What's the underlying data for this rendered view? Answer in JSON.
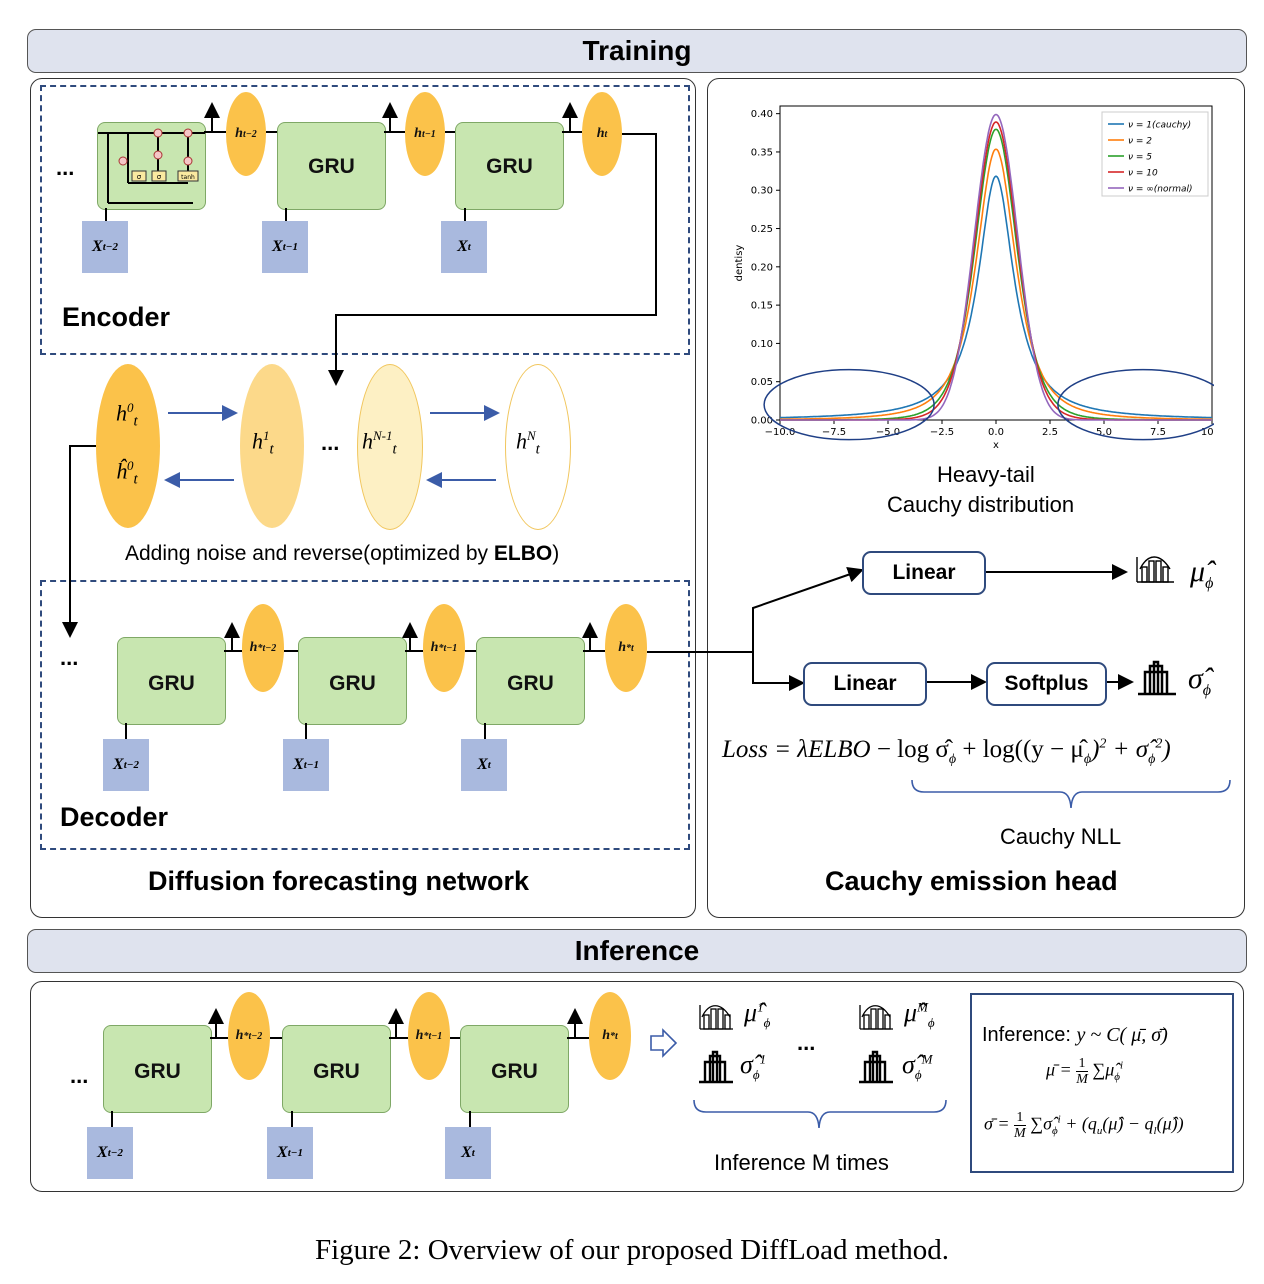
{
  "training_bar": {
    "title": "Training"
  },
  "inference_bar": {
    "title": "Inference"
  },
  "encoder": {
    "title": "Encoder",
    "ellipsis": "...",
    "gru_label": "GRU",
    "hidden": [
      {
        "base": "h",
        "sub": "t−2"
      },
      {
        "base": "h",
        "sub": "t−1"
      },
      {
        "base": "h",
        "sub": "t"
      }
    ],
    "inputs": [
      {
        "base": "X",
        "sub": "t−2"
      },
      {
        "base": "X",
        "sub": "t−1"
      },
      {
        "base": "X",
        "sub": "t"
      }
    ],
    "gate_labels": [
      "σ",
      "σ",
      "tanh"
    ]
  },
  "diffusion": {
    "nodes": [
      {
        "top": "h",
        "sup": "0",
        "sub": "t"
      },
      {
        "top": "ĥ",
        "sup": "0",
        "sub": "t"
      },
      {
        "top": "h",
        "sup": "1",
        "sub": "t"
      },
      {
        "top": "h",
        "sup": "N-1",
        "sub": "t"
      },
      {
        "top": "h",
        "sup": "N",
        "sub": "t"
      }
    ],
    "ellipsis": "...",
    "caption_prefix": "Adding noise and reverse(optimized by ",
    "caption_bold": "ELBO",
    "caption_suffix": ")"
  },
  "decoder": {
    "title": "Decoder",
    "ellipsis": "...",
    "gru_label": "GRU",
    "hidden": [
      {
        "base": "h",
        "sup": "*",
        "sub": "t−2"
      },
      {
        "base": "h",
        "sup": "*",
        "sub": "t−1"
      },
      {
        "base": "h",
        "sup": "*",
        "sub": "t"
      }
    ],
    "inputs": [
      {
        "base": "X",
        "sub": "t−2"
      },
      {
        "base": "X",
        "sub": "t−1"
      },
      {
        "base": "X",
        "sub": "t"
      }
    ]
  },
  "left_panel_title": "Diffusion forecasting network",
  "right_panel_title": "Cauchy emission head",
  "chart_data": {
    "type": "line",
    "xlabel": "x",
    "ylabel": "dentisy",
    "xlim": [
      -10,
      10
    ],
    "ylim": [
      0,
      0.41
    ],
    "xticks": [
      "−10.0",
      "−7.5",
      "−5.0",
      "−2.5",
      "0.0",
      "2.5",
      "5.0",
      "7.5",
      "10.0"
    ],
    "yticks": [
      "0.00",
      "0.05",
      "0.10",
      "0.15",
      "0.20",
      "0.25",
      "0.30",
      "0.35",
      "0.40"
    ],
    "legend_position": "top-right",
    "series": [
      {
        "name": "ν = 1(cauchy)",
        "nu": 1,
        "color": "#1f77b4",
        "peak": 0.318
      },
      {
        "name": "ν = 2",
        "nu": 2,
        "color": "#ff7f0e",
        "peak": 0.354
      },
      {
        "name": "ν = 5",
        "nu": 5,
        "color": "#2ca02c",
        "peak": 0.38
      },
      {
        "name": "ν = 10",
        "nu": 10,
        "color": "#d62728",
        "peak": 0.389
      },
      {
        "name": "ν = ∞(normal)",
        "nu": "inf",
        "color": "#9467bd",
        "peak": 0.399
      }
    ]
  },
  "chart_caption": {
    "line1": "Heavy-tail",
    "line2": "Cauchy distribution"
  },
  "head": {
    "linear1": "Linear",
    "linear2": "Linear",
    "softplus": "Softplus",
    "mu_symbol": "μ̂",
    "sigma_symbol": "σ̂",
    "phi": "ϕ"
  },
  "loss": {
    "lhs": "Loss",
    "eq": "=",
    "lambda_term": "λELBO",
    "rest": "− log σ̂",
    "log_term": "+ log((y − μ̂",
    "close": ")",
    "sq": "2",
    "plus_sigma": "+ σ̂",
    "end": ")",
    "nll_label": "Cauchy NLL"
  },
  "inference": {
    "ellipsis": "...",
    "gru_label": "GRU",
    "hidden": [
      {
        "base": "h",
        "sup": "*",
        "sub": "t−2"
      },
      {
        "base": "h",
        "sup": "*",
        "sub": "t−1"
      },
      {
        "base": "h",
        "sup": "*",
        "sub": "t"
      }
    ],
    "inputs": [
      {
        "base": "X",
        "sub": "t−2"
      },
      {
        "base": "X",
        "sub": "t−1"
      },
      {
        "base": "X",
        "sub": "t"
      }
    ],
    "samples_ellipsis": "...",
    "mu_first_sup": "1",
    "mu_last_sup": "M",
    "sigma_first_sup": "1",
    "sigma_last_sup": "M",
    "times_label": "Inference M times",
    "box_title": "Inference:",
    "box_dist": "y ~ C( μ̄, σ̄)",
    "mu_bar": "μ̄",
    "sigma_bar": "σ̄",
    "one": "1",
    "M": "M",
    "sum": "∑",
    "mu_term": "μ̂",
    "sigma_term": "σ̂",
    "quantile_term": "+ (q",
    "qu": "u",
    "ql": "l",
    "q_mid": "(μ̂) − q",
    "q_end": "(μ̂))",
    "i": "i"
  },
  "figure_caption": "Figure 2: Overview of our proposed DiffLoad method."
}
